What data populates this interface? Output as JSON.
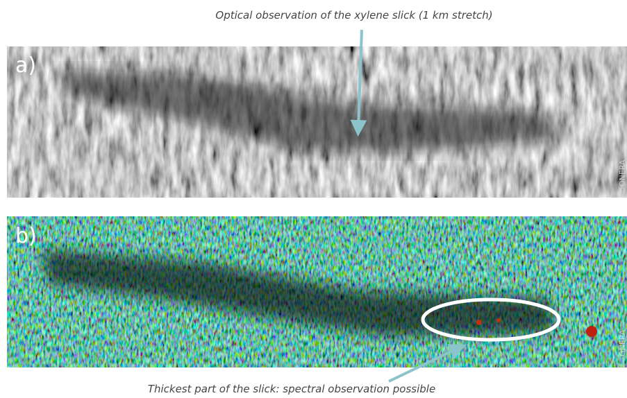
{
  "annotations": {
    "top": "Optical observation of the xylene slick (1 km stretch)",
    "bottom": "Thickest part of the slick: spectral observation possible"
  },
  "panels": [
    {
      "label": "a)",
      "credit": "©ONERA"
    },
    {
      "label": "b)",
      "credit": "©ONERA"
    }
  ]
}
